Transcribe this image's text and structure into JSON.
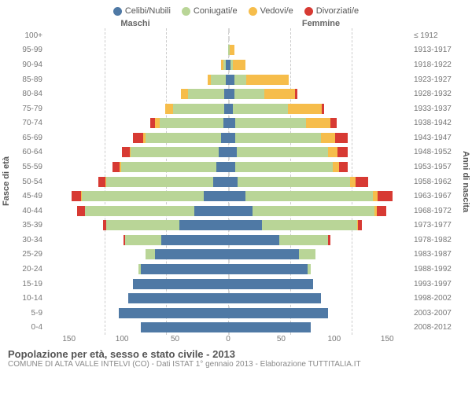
{
  "legend": [
    {
      "label": "Celibi/Nubili",
      "color": "#4f79a5"
    },
    {
      "label": "Coniugati/e",
      "color": "#b9d597"
    },
    {
      "label": "Vedovi/e",
      "color": "#f6bd4b"
    },
    {
      "label": "Divorziati/e",
      "color": "#d73a33"
    }
  ],
  "header": {
    "male": "Maschi",
    "female": "Femmine"
  },
  "axis": {
    "left": "Fasce di età",
    "right": "Anni di nascita"
  },
  "xmax": 150,
  "xticks": [
    150,
    100,
    50,
    0,
    50,
    100,
    150
  ],
  "footer": {
    "title": "Popolazione per età, sesso e stato civile - 2013",
    "sub": "COMUNE DI ALTA VALLE INTELVI (CO) - Dati ISTAT 1° gennaio 2013 - Elaborazione TUTTITALIA.IT"
  },
  "rows": [
    {
      "age": "100+",
      "birth": "≤ 1912",
      "m": [
        0,
        0,
        0,
        0
      ],
      "f": [
        0,
        0,
        0,
        0
      ]
    },
    {
      "age": "95-99",
      "birth": "1913-1917",
      "m": [
        0,
        0,
        0,
        0
      ],
      "f": [
        0,
        1,
        4,
        0
      ]
    },
    {
      "age": "90-94",
      "birth": "1918-1922",
      "m": [
        2,
        2,
        2,
        0
      ],
      "f": [
        2,
        2,
        10,
        0
      ]
    },
    {
      "age": "85-89",
      "birth": "1923-1927",
      "m": [
        2,
        12,
        3,
        0
      ],
      "f": [
        5,
        10,
        35,
        0
      ]
    },
    {
      "age": "80-84",
      "birth": "1928-1932",
      "m": [
        3,
        30,
        6,
        0
      ],
      "f": [
        5,
        25,
        25,
        2
      ]
    },
    {
      "age": "75-79",
      "birth": "1933-1937",
      "m": [
        3,
        42,
        7,
        0
      ],
      "f": [
        4,
        45,
        28,
        2
      ]
    },
    {
      "age": "70-74",
      "birth": "1938-1942",
      "m": [
        4,
        52,
        4,
        4
      ],
      "f": [
        6,
        58,
        20,
        5
      ]
    },
    {
      "age": "65-69",
      "birth": "1943-1947",
      "m": [
        6,
        62,
        2,
        8
      ],
      "f": [
        6,
        70,
        12,
        10
      ]
    },
    {
      "age": "60-64",
      "birth": "1948-1952",
      "m": [
        8,
        72,
        1,
        6
      ],
      "f": [
        7,
        75,
        8,
        8
      ]
    },
    {
      "age": "55-59",
      "birth": "1953-1957",
      "m": [
        10,
        78,
        1,
        6
      ],
      "f": [
        6,
        80,
        5,
        7
      ]
    },
    {
      "age": "50-54",
      "birth": "1958-1962",
      "m": [
        12,
        88,
        1,
        6
      ],
      "f": [
        8,
        92,
        5,
        10
      ]
    },
    {
      "age": "45-49",
      "birth": "1963-1967",
      "m": [
        20,
        100,
        1,
        8
      ],
      "f": [
        14,
        105,
        4,
        12
      ]
    },
    {
      "age": "40-44",
      "birth": "1968-1972",
      "m": [
        28,
        90,
        0,
        6
      ],
      "f": [
        20,
        100,
        2,
        8
      ]
    },
    {
      "age": "35-39",
      "birth": "1973-1977",
      "m": [
        40,
        60,
        0,
        3
      ],
      "f": [
        28,
        78,
        1,
        3
      ]
    },
    {
      "age": "30-34",
      "birth": "1978-1982",
      "m": [
        55,
        30,
        0,
        1
      ],
      "f": [
        42,
        40,
        0,
        2
      ]
    },
    {
      "age": "25-29",
      "birth": "1983-1987",
      "m": [
        60,
        8,
        0,
        0
      ],
      "f": [
        58,
        14,
        0,
        0
      ]
    },
    {
      "age": "20-24",
      "birth": "1988-1992",
      "m": [
        72,
        2,
        0,
        0
      ],
      "f": [
        65,
        3,
        0,
        0
      ]
    },
    {
      "age": "15-19",
      "birth": "1993-1997",
      "m": [
        78,
        0,
        0,
        0
      ],
      "f": [
        70,
        0,
        0,
        0
      ]
    },
    {
      "age": "10-14",
      "birth": "1998-2002",
      "m": [
        82,
        0,
        0,
        0
      ],
      "f": [
        76,
        0,
        0,
        0
      ]
    },
    {
      "age": "5-9",
      "birth": "2003-2007",
      "m": [
        90,
        0,
        0,
        0
      ],
      "f": [
        82,
        0,
        0,
        0
      ]
    },
    {
      "age": "0-4",
      "birth": "2008-2012",
      "m": [
        72,
        0,
        0,
        0
      ],
      "f": [
        68,
        0,
        0,
        0
      ]
    }
  ],
  "grid_positions_pct": [
    16.67,
    33.33,
    50,
    66.67,
    83.33
  ]
}
